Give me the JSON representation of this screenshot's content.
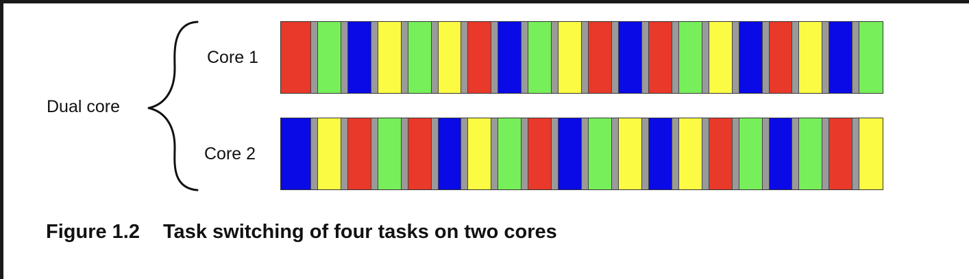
{
  "labels": {
    "group": "Dual core",
    "core1": "Core 1",
    "core2": "Core 2"
  },
  "caption": {
    "number": "Figure 1.2",
    "text": "Task switching of four tasks on two cores"
  },
  "colors": {
    "red": "#e8392a",
    "green": "#77ef5b",
    "blue": "#0a0ae6",
    "yellow": "#fbfb44",
    "separator": "#9a9a9a"
  },
  "timeline": {
    "core1": [
      "red",
      "green",
      "blue",
      "yellow",
      "green",
      "yellow",
      "red",
      "blue",
      "green",
      "yellow",
      "red",
      "blue",
      "red",
      "green",
      "yellow",
      "blue",
      "red",
      "yellow",
      "blue",
      "green"
    ],
    "core2": [
      "blue",
      "yellow",
      "red",
      "green",
      "red",
      "blue",
      "yellow",
      "green",
      "red",
      "blue",
      "green",
      "yellow",
      "blue",
      "yellow",
      "red",
      "green",
      "blue",
      "green",
      "red",
      "yellow"
    ]
  }
}
